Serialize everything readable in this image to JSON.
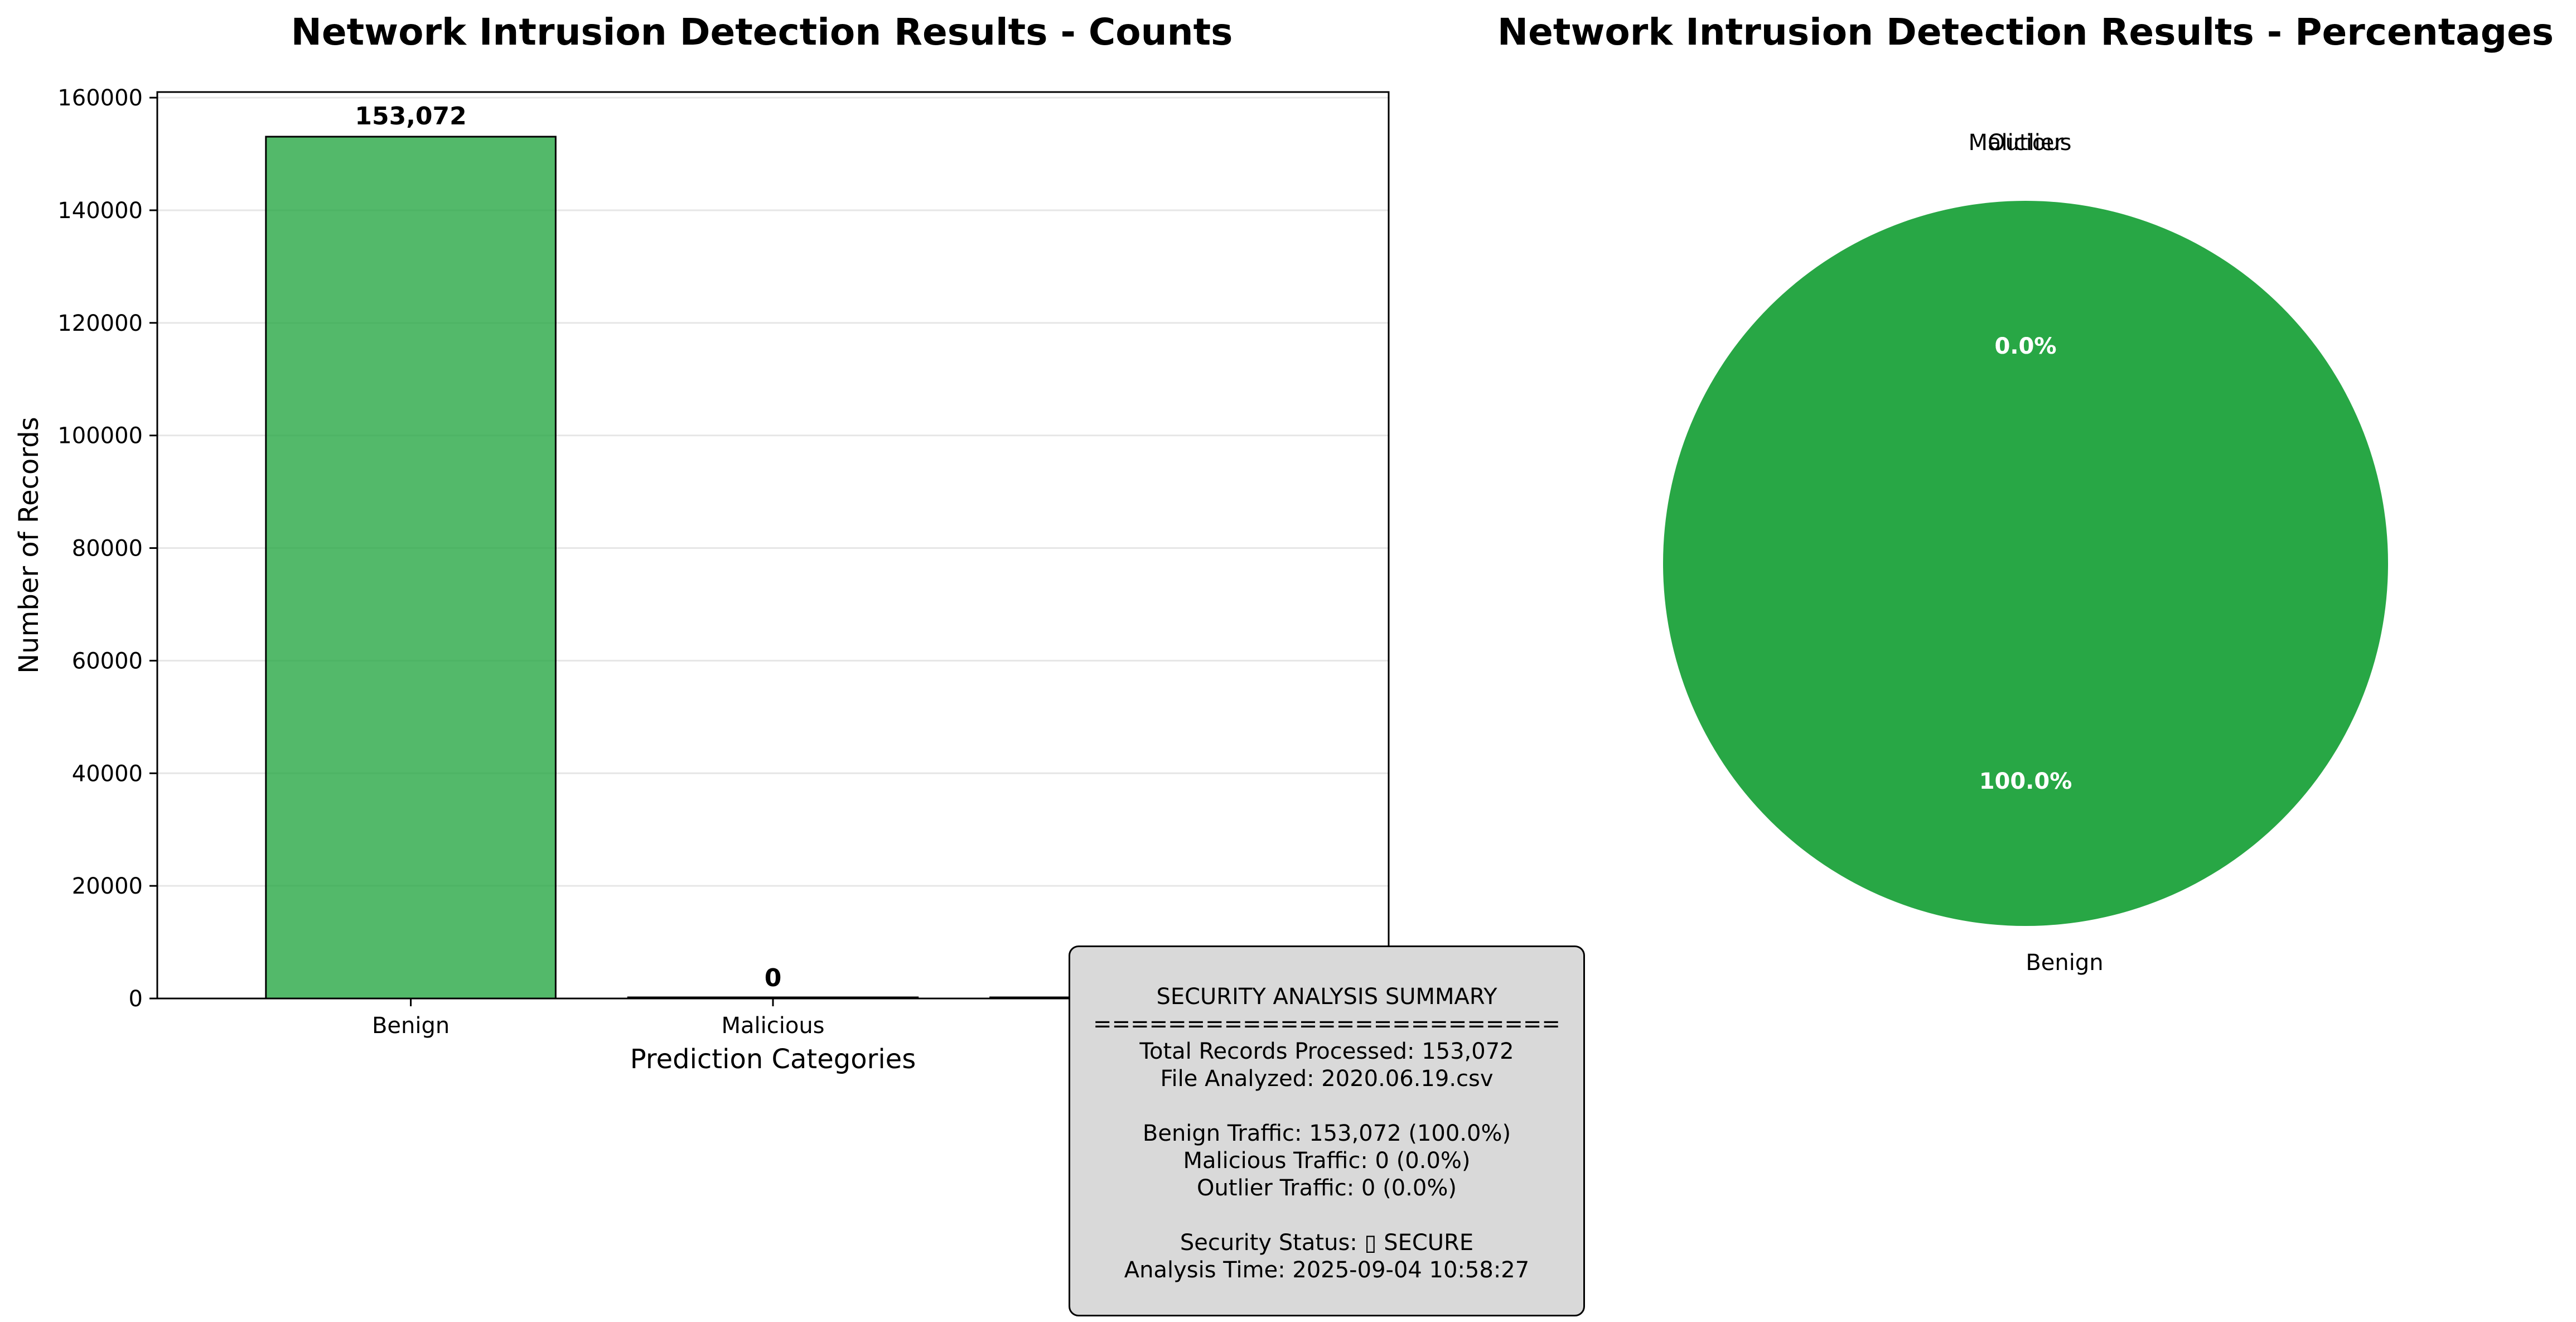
{
  "bar_chart": {
    "title": "Network Intrusion Detection Results - Counts",
    "xlabel": "Prediction Categories",
    "ylabel": "Number of Records"
  },
  "pie_chart": {
    "title": "Network Intrusion Detection Results - Percentages"
  },
  "summary": {
    "heading": "SECURITY ANALYSIS SUMMARY",
    "separator": "=========================",
    "total_records": "Total Records Processed: 153,072",
    "file_analyzed": "File Analyzed: 2020.06.19.csv",
    "benign_traffic": "Benign Traffic: 153,072 (100.0%)",
    "malicious_traffic": "Malicious Traffic: 0 (0.0%)",
    "outlier_traffic": "Outlier Traffic: 0 (0.0%)",
    "security_status": "Security Status: ▯ SECURE",
    "analysis_time": "Analysis Time: 2025-09-04 10:58:27"
  },
  "chart_data": [
    {
      "type": "bar",
      "title": "Network Intrusion Detection Results - Counts",
      "xlabel": "Prediction Categories",
      "ylabel": "Number of Records",
      "categories": [
        "Benign",
        "Malicious",
        "Outlier"
      ],
      "values": [
        153072,
        0,
        0
      ],
      "value_labels": [
        "153,072",
        "0",
        "0"
      ],
      "yticks": [
        0,
        20000,
        40000,
        60000,
        80000,
        100000,
        120000,
        140000,
        160000
      ],
      "ylim": [
        0,
        161000
      ],
      "colors": [
        "#28a745",
        "#dc3545",
        "#fd7e14"
      ],
      "grid": "y"
    },
    {
      "type": "pie",
      "title": "Network Intrusion Detection Results - Percentages",
      "labels": [
        "Benign",
        "Malicious",
        "Outlier"
      ],
      "values": [
        100.0,
        0.0,
        0.0
      ],
      "pct_labels": [
        "100.0%",
        "0.0%",
        "0.0%"
      ],
      "colors": [
        "#28a745",
        "#dc3545",
        "#fd7e14"
      ]
    }
  ]
}
